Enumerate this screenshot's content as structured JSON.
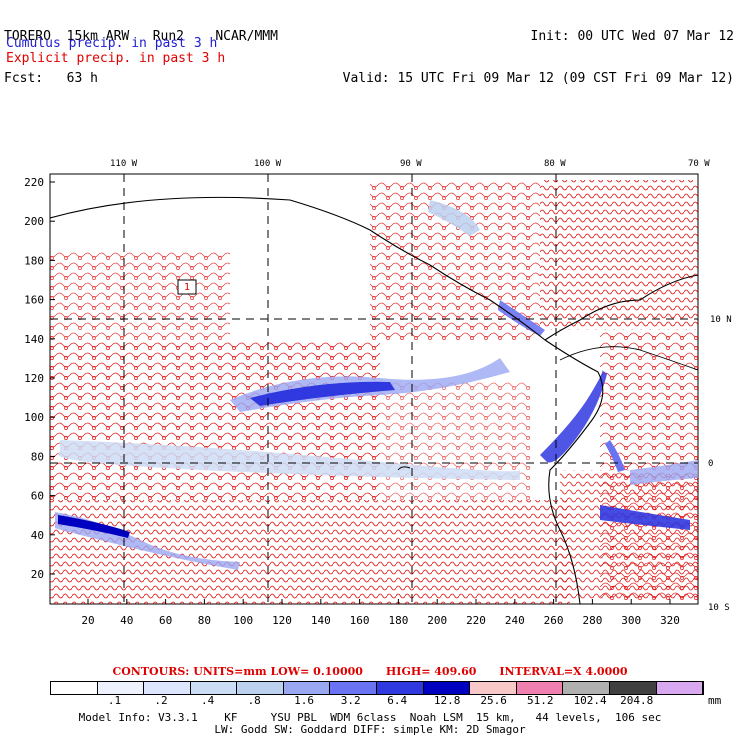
{
  "header": {
    "model": "TORERO  15km ARW   Run2    NCAR/MMM",
    "fcst": "Fcst:   63 h",
    "init": "Init: 00 UTC Wed 07 Mar 12",
    "valid": "Valid: 15 UTC Fri 09 Mar 12 (09 CST Fri 09 Mar 12)",
    "line_cumulus": "Cumulus precip. in past 3 h",
    "line_explicit": "Explicit precip. in past 3 h"
  },
  "colors": {
    "cumulus": "#2020d0",
    "explicit": "#e00000",
    "contour_red": "#e00000"
  },
  "map": {
    "lon_labels": [
      "110 W",
      "100 W",
      "90 W",
      "80 W",
      "70 W"
    ],
    "lat_labels": [
      "10 N",
      "0",
      "10 S"
    ],
    "y_ticks": [
      "220",
      "200",
      "180",
      "160",
      "140",
      "120",
      "100",
      "80",
      "60",
      "40",
      "20"
    ],
    "x_ticks": [
      "20",
      "40",
      "60",
      "80",
      "100",
      "120",
      "140",
      "160",
      "180",
      "200",
      "220",
      "240",
      "260",
      "280",
      "300",
      "320"
    ],
    "box_label": "1"
  },
  "contour_info": {
    "units": "CONTOURS:  UNITS=mm  LOW= 0.10000",
    "high": "HIGH=  409.60",
    "interval": "INTERVAL=X  4.0000"
  },
  "colorbar": {
    "labels": [
      ".1",
      ".2",
      ".4",
      ".8",
      "1.6",
      "3.2",
      "6.4",
      "12.8",
      "25.6",
      "51.2",
      "102.4",
      "204.8"
    ],
    "unit": "mm",
    "colors": [
      "#ffffff",
      "#eef2ff",
      "#dde6ff",
      "#cddcf5",
      "#bcd0f0",
      "#9aa8f2",
      "#6a74f2",
      "#3038e0",
      "#0000c0",
      "#f8c8c8",
      "#f080b0",
      "#b0b0b0",
      "#404040",
      "#d8a8f0"
    ]
  },
  "footer": {
    "line1": "Model Info: V3.3.1    KF     YSU PBL  WDM 6class  Noah LSM  15 km,   44 levels,  106 sec",
    "line2": "LW: Godd SW: Goddard DIFF: simple KM: 2D Smagor"
  }
}
